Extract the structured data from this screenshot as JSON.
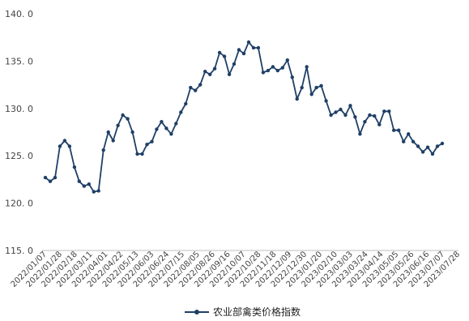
{
  "chart_data": {
    "type": "line",
    "title": "",
    "xlabel": "",
    "ylabel": "",
    "ylim": [
      115,
      140
    ],
    "yticks": [
      "115. 0",
      "120. 0",
      "125. 0",
      "130. 0",
      "135. 0",
      "140. 0"
    ],
    "ytick_values": [
      115,
      120,
      125,
      130,
      135,
      140
    ],
    "xtick_labels": [
      "2022/01/07",
      "2022/01/28",
      "2022/02/18",
      "2022/03/11",
      "2022/04/01",
      "2022/04/22",
      "2022/05/13",
      "2022/06/03",
      "2022/06/24",
      "2022/07/15",
      "2022/08/05",
      "2022/08/26",
      "2022/09/16",
      "2022/10/07",
      "2022/10/28",
      "2022/11/18",
      "2022/12/09",
      "2022/12/30",
      "2023/01/20",
      "2023/02/10",
      "2023/03/03",
      "2023/03/24",
      "2023/04/14",
      "2023/05/05",
      "2023/05/26",
      "2023/06/16",
      "2023/07/07",
      "2023/07/28"
    ],
    "grid": false,
    "legend_position": "bottom",
    "color": "#1f3f66",
    "series": [
      {
        "name": "农业部禽类价格指数",
        "values": [
          122.7,
          122.3,
          122.7,
          126.0,
          126.6,
          126.0,
          123.8,
          122.3,
          121.8,
          122.0,
          121.2,
          121.3,
          125.6,
          127.5,
          126.6,
          128.2,
          129.3,
          128.9,
          127.5,
          125.2,
          125.2,
          126.2,
          126.5,
          127.8,
          128.6,
          127.9,
          127.3,
          128.4,
          129.6,
          130.5,
          132.2,
          131.9,
          132.5,
          133.9,
          133.6,
          134.2,
          135.9,
          135.5,
          133.6,
          134.7,
          136.2,
          135.8,
          137.0,
          136.4,
          136.4,
          133.8,
          134.0,
          134.4,
          134.0,
          134.3,
          135.1,
          133.3,
          131.0,
          132.2,
          134.4,
          131.5,
          132.2,
          132.4,
          130.8,
          129.3,
          129.6,
          129.9,
          129.3,
          130.3,
          129.1,
          127.3,
          128.6,
          129.3,
          129.2,
          128.3,
          129.7,
          129.7,
          127.7,
          127.7,
          126.5,
          127.3,
          126.5,
          126.0,
          125.4,
          125.9,
          125.2,
          126.0,
          126.3
        ]
      }
    ]
  }
}
